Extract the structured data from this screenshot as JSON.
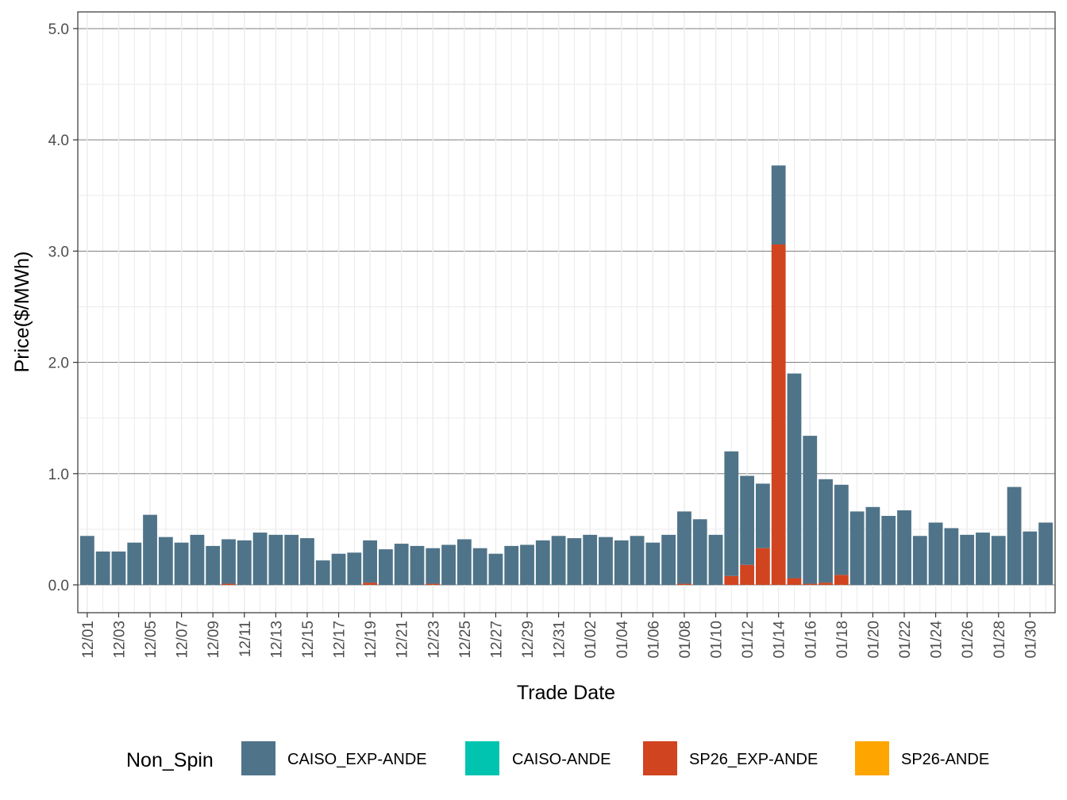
{
  "chart_data": {
    "type": "bar",
    "stacked": true,
    "xlabel": "Trade Date",
    "ylabel": "Price($/MWh)",
    "ylim": [
      -0.25,
      5.15
    ],
    "y_ticks": [
      "0.0",
      "1.0",
      "2.0",
      "3.0",
      "4.0",
      "5.0"
    ],
    "grid": true,
    "legend": {
      "title": "Non_Spin",
      "placement": "bottom"
    },
    "tick_labels": [
      "12/01",
      "12/03",
      "12/05",
      "12/07",
      "12/09",
      "12/11",
      "12/13",
      "12/15",
      "12/17",
      "12/19",
      "12/21",
      "12/23",
      "12/25",
      "12/27",
      "12/29",
      "12/31",
      "01/02",
      "01/04",
      "01/06",
      "01/08",
      "01/10",
      "01/12",
      "01/14",
      "01/16",
      "01/18",
      "01/20",
      "01/22",
      "01/24",
      "01/26",
      "01/28",
      "01/30"
    ],
    "categories": [
      "12/01",
      "12/02",
      "12/03",
      "12/04",
      "12/05",
      "12/06",
      "12/07",
      "12/08",
      "12/09",
      "12/10",
      "12/11",
      "12/12",
      "12/13",
      "12/14",
      "12/15",
      "12/16",
      "12/17",
      "12/18",
      "12/19",
      "12/20",
      "12/21",
      "12/22",
      "12/23",
      "12/24",
      "12/25",
      "12/26",
      "12/27",
      "12/28",
      "12/29",
      "12/30",
      "12/31",
      "01/01",
      "01/02",
      "01/03",
      "01/04",
      "01/05",
      "01/06",
      "01/07",
      "01/08",
      "01/09",
      "01/10",
      "01/11",
      "01/12",
      "01/13",
      "01/14",
      "01/15",
      "01/16",
      "01/17",
      "01/18",
      "01/19",
      "01/20",
      "01/21",
      "01/22",
      "01/23",
      "01/24",
      "01/25",
      "01/26",
      "01/27",
      "01/28",
      "01/29",
      "01/30",
      "01/31"
    ],
    "series": [
      {
        "name": "CAISO_EXP-ANDE",
        "color": "#4f7489",
        "values": [
          0.44,
          0.3,
          0.3,
          0.38,
          0.63,
          0.43,
          0.38,
          0.45,
          0.35,
          0.4,
          0.4,
          0.47,
          0.45,
          0.45,
          0.42,
          0.22,
          0.28,
          0.29,
          0.38,
          0.32,
          0.37,
          0.35,
          0.32,
          0.36,
          0.41,
          0.33,
          0.28,
          0.35,
          0.36,
          0.4,
          0.44,
          0.42,
          0.45,
          0.43,
          0.4,
          0.44,
          0.38,
          0.45,
          0.65,
          0.59,
          0.45,
          1.12,
          0.8,
          0.58,
          0.71,
          1.84,
          1.33,
          0.93,
          0.81,
          0.66,
          0.7,
          0.62,
          0.67,
          0.44,
          0.56,
          0.51,
          0.45,
          0.47,
          0.44,
          0.88,
          0.48,
          0.56
        ]
      },
      {
        "name": "CAISO-ANDE",
        "color": "#00c4b0",
        "values": [
          0,
          0,
          0,
          0,
          0,
          0,
          0,
          0,
          0,
          0,
          0,
          0,
          0,
          0,
          0,
          0,
          0,
          0,
          0,
          0,
          0,
          0,
          0,
          0,
          0,
          0,
          0,
          0,
          0,
          0,
          0,
          0,
          0,
          0,
          0,
          0,
          0,
          0,
          0,
          0,
          0,
          0,
          0,
          0,
          0,
          0,
          0,
          0,
          0,
          0,
          0,
          0,
          0,
          0,
          0,
          0,
          0,
          0,
          0,
          0,
          0,
          0
        ]
      },
      {
        "name": "SP26_EXP-ANDE",
        "color": "#d14420",
        "values": [
          0,
          0,
          0,
          0,
          0,
          0,
          0,
          0,
          0,
          0.01,
          0,
          0,
          0,
          0,
          0,
          0,
          0,
          0,
          0.02,
          0,
          0,
          0,
          0.01,
          0,
          0,
          0,
          0,
          0,
          0,
          0,
          0,
          0,
          0,
          0,
          0,
          0,
          0,
          0,
          0.01,
          0,
          0,
          0.08,
          0.18,
          0.33,
          3.06,
          0.06,
          0.01,
          0.02,
          0.09,
          0,
          0,
          0,
          0,
          0,
          0,
          0,
          0,
          0,
          0,
          0,
          0,
          0
        ]
      },
      {
        "name": "SP26-ANDE",
        "color": "#ffa500",
        "values": [
          0,
          0,
          0,
          0,
          0,
          0,
          0,
          0,
          0,
          0,
          0,
          0,
          0,
          0,
          0,
          0,
          0,
          0,
          0,
          0,
          0,
          0,
          0,
          0,
          0,
          0,
          0,
          0,
          0,
          0,
          0,
          0,
          0,
          0,
          0,
          0,
          0,
          0,
          0,
          0,
          0,
          0,
          0,
          0,
          0,
          0,
          0,
          0,
          0,
          0,
          0,
          0,
          0,
          0,
          0,
          0,
          0,
          0,
          0,
          0,
          0,
          0
        ]
      }
    ]
  }
}
